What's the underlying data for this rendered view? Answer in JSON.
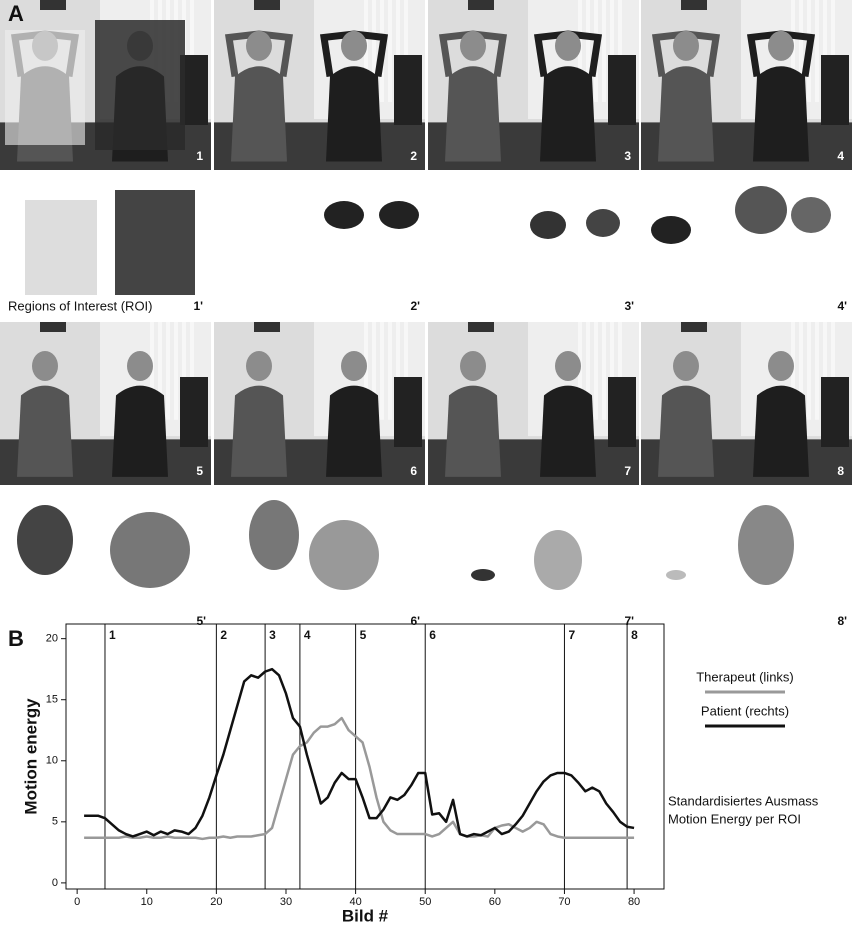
{
  "panel_labels": [
    "A",
    "B"
  ],
  "frames": [
    "1",
    "2",
    "3",
    "4",
    "5",
    "6",
    "7",
    "8"
  ],
  "motion_frames": [
    "1'",
    "2'",
    "3'",
    "4'",
    "5'",
    "6'",
    "7'",
    "8'"
  ],
  "roi_label": "Regions of Interest (ROI)",
  "chart_data": {
    "type": "line",
    "x_label": "Bild #",
    "y_label": "Motion energy",
    "x": [
      1,
      2,
      3,
      4,
      5,
      6,
      7,
      8,
      9,
      10,
      11,
      12,
      13,
      14,
      15,
      16,
      17,
      18,
      19,
      20,
      21,
      22,
      23,
      24,
      25,
      26,
      27,
      28,
      29,
      30,
      31,
      32,
      33,
      34,
      35,
      36,
      37,
      38,
      39,
      40,
      41,
      42,
      43,
      44,
      45,
      46,
      47,
      48,
      49,
      50,
      51,
      52,
      53,
      54,
      55,
      56,
      57,
      58,
      59,
      60,
      61,
      62,
      63,
      64,
      65,
      66,
      67,
      68,
      69,
      70,
      71,
      72,
      73,
      74,
      75,
      76,
      77,
      78,
      79,
      80
    ],
    "series": [
      {
        "name": "Therapeut (links)",
        "color": "#999999",
        "values": [
          3.7,
          3.7,
          3.7,
          3.7,
          3.7,
          3.7,
          3.8,
          3.7,
          3.7,
          3.8,
          3.7,
          3.7,
          3.8,
          3.7,
          3.7,
          3.7,
          3.7,
          3.6,
          3.7,
          3.7,
          3.8,
          3.7,
          3.8,
          3.8,
          3.8,
          3.9,
          4.0,
          4.5,
          6.5,
          8.5,
          10.5,
          11.2,
          11.5,
          12.3,
          12.8,
          12.8,
          13.0,
          13.5,
          12.5,
          12.0,
          11.5,
          9.5,
          7.0,
          5.0,
          4.3,
          4.0,
          4.0,
          4.0,
          4.0,
          4.0,
          3.8,
          4.0,
          4.5,
          5.0,
          4.0,
          3.8,
          3.8,
          3.9,
          3.8,
          4.5,
          4.7,
          4.8,
          4.5,
          4.2,
          4.5,
          5.0,
          4.8,
          4.0,
          3.8,
          3.7,
          3.7,
          3.7,
          3.7,
          3.7,
          3.7,
          3.7,
          3.7,
          3.7,
          3.7,
          3.7
        ]
      },
      {
        "name": "Patient (rechts)",
        "color": "#111111",
        "values": [
          5.5,
          5.5,
          5.5,
          5.3,
          4.8,
          4.3,
          4.0,
          3.8,
          4.0,
          4.2,
          3.9,
          4.2,
          4.0,
          4.3,
          4.2,
          4.0,
          4.5,
          5.5,
          7.0,
          8.8,
          10.5,
          12.5,
          14.5,
          16.5,
          17.0,
          16.8,
          17.3,
          17.5,
          17.0,
          15.5,
          13.5,
          12.8,
          10.5,
          8.5,
          6.5,
          7.0,
          8.2,
          9.0,
          8.5,
          8.5,
          7.0,
          5.3,
          5.3,
          6.0,
          7.0,
          6.8,
          7.2,
          8.0,
          9.0,
          9.0,
          5.6,
          5.7,
          5.0,
          6.8,
          4.0,
          3.8,
          4.0,
          3.9,
          4.2,
          4.5,
          4.0,
          4.2,
          4.8,
          5.5,
          6.5,
          7.5,
          8.3,
          8.8,
          9.0,
          9.0,
          8.8,
          8.2,
          7.5,
          7.8,
          7.5,
          6.5,
          5.8,
          5.0,
          4.6,
          4.5
        ]
      }
    ],
    "markers": [
      {
        "x": 4,
        "label": "1"
      },
      {
        "x": 20,
        "label": "2"
      },
      {
        "x": 27,
        "label": "3"
      },
      {
        "x": 32,
        "label": "4"
      },
      {
        "x": 40,
        "label": "5"
      },
      {
        "x": 50,
        "label": "6"
      },
      {
        "x": 70,
        "label": "7"
      },
      {
        "x": 79,
        "label": "8"
      }
    ],
    "note": [
      "Standardisiertes Ausmass",
      "Motion Energy per ROI"
    ],
    "xlim": [
      -1.6,
      84.3
    ],
    "ylim": [
      -0.5,
      21.2
    ],
    "xticks": [
      0,
      10,
      20,
      30,
      40,
      50,
      60,
      70,
      80
    ],
    "yticks": [
      0,
      5,
      10,
      15,
      20
    ]
  }
}
